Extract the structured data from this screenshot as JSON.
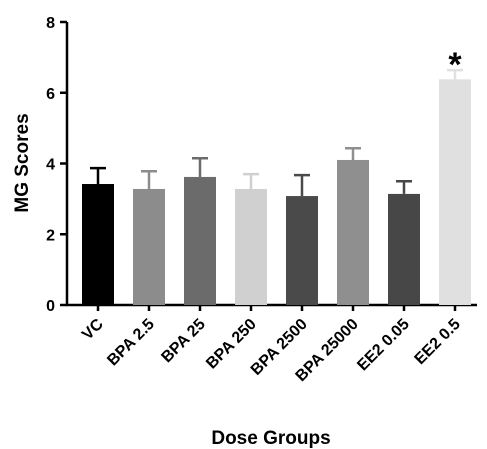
{
  "chart_data": {
    "type": "bar",
    "x_label": "Dose Groups",
    "y_label": "MG Scores",
    "categories": [
      "VC",
      "BPA 2.5",
      "BPA 25",
      "BPA 250",
      "BPA 2500",
      "BPA 25000",
      "EE2 0.05",
      "EE2 0.5"
    ],
    "values": [
      3.42,
      3.28,
      3.62,
      3.28,
      3.08,
      4.1,
      3.14,
      6.38
    ],
    "errors": [
      0.45,
      0.5,
      0.53,
      0.42,
      0.59,
      0.33,
      0.36,
      0.26
    ],
    "colors": [
      "#000000",
      "#8c8c8c",
      "#6b6b6b",
      "#d0d0d0",
      "#4a4a4a",
      "#8f8f8f",
      "#474747",
      "#e0e0e0"
    ],
    "ylim": [
      0,
      8
    ],
    "yticks": [
      0,
      2,
      4,
      6,
      8
    ],
    "annotations": [
      {
        "text": "*",
        "category": "EE2 0.5"
      }
    ]
  }
}
